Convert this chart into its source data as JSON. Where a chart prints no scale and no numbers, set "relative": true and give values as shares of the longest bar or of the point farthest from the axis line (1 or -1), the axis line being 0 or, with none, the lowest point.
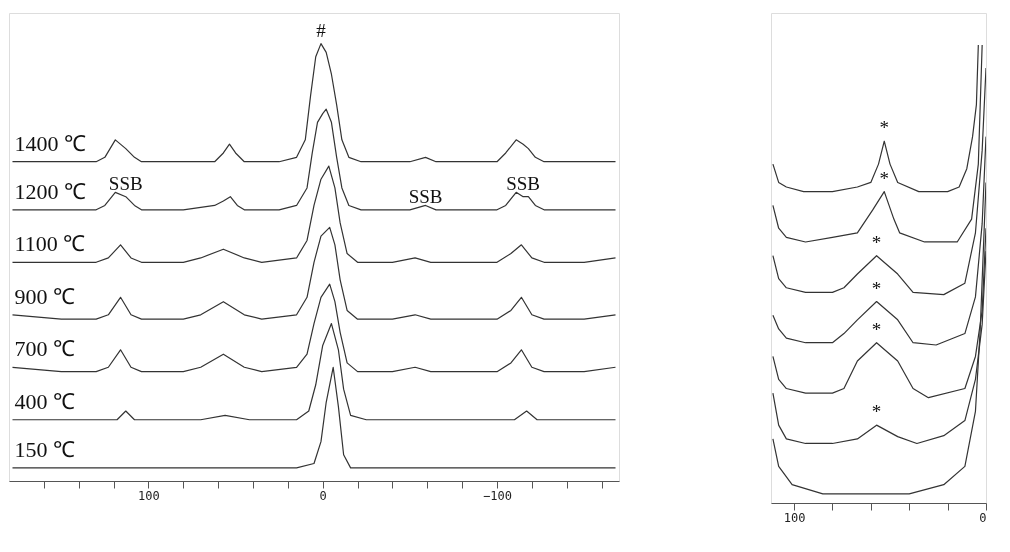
{
  "chart_data": [
    {
      "type": "line",
      "relative": true,
      "tick_labels": "x",
      "grid": false,
      "xlim": [
        180,
        -170
      ],
      "xticks": [
        {
          "value": 160,
          "label": null
        },
        {
          "value": 140,
          "label": null
        },
        {
          "value": 120,
          "label": null
        },
        100,
        {
          "value": 80,
          "label": null
        },
        {
          "value": 60,
          "label": null
        },
        {
          "value": 40,
          "label": null
        },
        {
          "value": 20,
          "label": null
        },
        0,
        {
          "value": -20,
          "label": null
        },
        {
          "value": -40,
          "label": null
        },
        {
          "value": -60,
          "label": null
        },
        {
          "value": -80,
          "label": null
        },
        -100,
        {
          "value": -120,
          "label": null
        },
        {
          "value": -140,
          "label": null
        },
        {
          "value": -160,
          "label": null
        }
      ],
      "series": [
        {
          "name": "1400 ℃",
          "color": "#333333",
          "x": [
            178,
            150,
            130,
            125,
            119,
            113,
            108,
            104,
            80,
            62,
            57,
            53.5,
            50,
            45,
            25,
            15,
            10,
            7,
            4,
            1,
            -2,
            -5,
            -8,
            -11,
            -15,
            -22,
            -50,
            -59,
            -65,
            -100,
            -105,
            -111,
            -115,
            -118,
            -122,
            -127,
            -150,
            -168
          ],
          "values": [
            0.73,
            0.73,
            0.73,
            0.74,
            0.78,
            0.76,
            0.74,
            0.73,
            0.73,
            0.73,
            0.75,
            0.77,
            0.75,
            0.73,
            0.73,
            0.74,
            0.78,
            0.88,
            0.97,
            1.0,
            0.98,
            0.93,
            0.86,
            0.78,
            0.74,
            0.73,
            0.73,
            0.74,
            0.73,
            0.73,
            0.75,
            0.78,
            0.77,
            0.76,
            0.74,
            0.73,
            0.73,
            0.73
          ]
        },
        {
          "name": "1200 ℃",
          "color": "#333333",
          "x": [
            178,
            150,
            130,
            125,
            119,
            113,
            108,
            104,
            80,
            62,
            57,
            53,
            49,
            45,
            25,
            15,
            9,
            6,
            3,
            0,
            -2,
            -5,
            -8,
            -11,
            -15,
            -22,
            -50,
            -59,
            -65,
            -100,
            -105,
            -111,
            -115,
            -118,
            -122,
            -127,
            -150,
            -168
          ],
          "values": [
            0.62,
            0.62,
            0.62,
            0.63,
            0.66,
            0.65,
            0.63,
            0.62,
            0.62,
            0.63,
            0.64,
            0.65,
            0.63,
            0.62,
            0.62,
            0.63,
            0.67,
            0.75,
            0.82,
            0.84,
            0.85,
            0.82,
            0.74,
            0.67,
            0.63,
            0.62,
            0.62,
            0.63,
            0.62,
            0.62,
            0.63,
            0.66,
            0.65,
            0.65,
            0.63,
            0.62,
            0.62,
            0.62
          ]
        },
        {
          "name": "1100 ℃",
          "color": "#333333",
          "x": [
            178,
            150,
            130,
            123,
            116,
            110,
            104,
            80,
            70,
            57,
            45,
            35,
            15,
            9,
            5,
            1,
            -3.5,
            -7,
            -10,
            -14,
            -20,
            -40,
            -53,
            -62,
            -100,
            -108,
            -114,
            -120,
            -127,
            -150,
            -168
          ],
          "values": [
            0.5,
            0.5,
            0.5,
            0.51,
            0.54,
            0.51,
            0.5,
            0.5,
            0.51,
            0.53,
            0.51,
            0.5,
            0.51,
            0.55,
            0.63,
            0.69,
            0.72,
            0.67,
            0.59,
            0.52,
            0.5,
            0.5,
            0.51,
            0.5,
            0.5,
            0.52,
            0.54,
            0.51,
            0.5,
            0.5,
            0.51
          ]
        },
        {
          "name": "900 ℃",
          "color": "#333333",
          "x": [
            178,
            150,
            130,
            123,
            116,
            110,
            104,
            80,
            70,
            57,
            45,
            35,
            15,
            9,
            5,
            1,
            -4,
            -7,
            -10,
            -14,
            -20,
            -40,
            -53,
            -62,
            -100,
            -108,
            -114,
            -120,
            -127,
            -150,
            -168
          ],
          "values": [
            0.38,
            0.37,
            0.37,
            0.38,
            0.42,
            0.38,
            0.37,
            0.37,
            0.38,
            0.41,
            0.38,
            0.37,
            0.38,
            0.42,
            0.5,
            0.56,
            0.58,
            0.54,
            0.46,
            0.39,
            0.37,
            0.37,
            0.38,
            0.37,
            0.37,
            0.39,
            0.42,
            0.38,
            0.37,
            0.37,
            0.38
          ]
        },
        {
          "name": "700 ℃",
          "color": "#333333",
          "x": [
            178,
            150,
            130,
            123,
            116,
            110,
            104,
            80,
            70,
            57,
            45,
            35,
            15,
            9,
            5,
            1,
            -4,
            -7,
            -10,
            -14,
            -20,
            -40,
            -53,
            -62,
            -100,
            -108,
            -114,
            -120,
            -127,
            -150,
            -168
          ],
          "values": [
            0.26,
            0.25,
            0.25,
            0.26,
            0.3,
            0.26,
            0.25,
            0.25,
            0.26,
            0.29,
            0.26,
            0.25,
            0.26,
            0.29,
            0.36,
            0.42,
            0.45,
            0.41,
            0.34,
            0.27,
            0.25,
            0.25,
            0.26,
            0.25,
            0.25,
            0.27,
            0.3,
            0.26,
            0.25,
            0.25,
            0.26
          ]
        },
        {
          "name": "400 ℃",
          "color": "#333333",
          "x": [
            178,
            130,
            118,
            113,
            108,
            70,
            56,
            42,
            15,
            8,
            4,
            0,
            -5,
            -9,
            -12,
            -16,
            -25,
            -110,
            -117,
            -123,
            -168
          ],
          "values": [
            0.14,
            0.14,
            0.14,
            0.16,
            0.14,
            0.14,
            0.15,
            0.14,
            0.14,
            0.16,
            0.22,
            0.31,
            0.36,
            0.3,
            0.21,
            0.15,
            0.14,
            0.14,
            0.16,
            0.14,
            0.14
          ]
        },
        {
          "name": "150 ℃",
          "color": "#333333",
          "x": [
            178,
            120,
            110,
            100,
            15,
            5,
            1,
            -2,
            -6,
            -9,
            -12,
            -16,
            -110,
            -118,
            -125,
            -168
          ],
          "values": [
            0.03,
            0.03,
            0.03,
            0.03,
            0.03,
            0.04,
            0.09,
            0.18,
            0.26,
            0.17,
            0.06,
            0.03,
            0.03,
            0.03,
            0.03,
            0.03
          ]
        }
      ],
      "annotations": [
        {
          "text": "#",
          "x": 1,
          "y": 1.0
        },
        {
          "text": "SSB",
          "x": 113,
          "y": 0.65
        },
        {
          "text": "SSB",
          "x": -59,
          "y": 0.62
        },
        {
          "text": "SSB",
          "x": -115,
          "y": 0.65
        }
      ]
    },
    {
      "type": "line",
      "relative": true,
      "tick_labels": "x",
      "grid": false,
      "xlim": [
        112,
        0
      ],
      "xticks": [
        100,
        {
          "value": 80,
          "label": null
        },
        {
          "value": 60,
          "label": null
        },
        {
          "value": 40,
          "label": null
        },
        {
          "value": 20,
          "label": null
        },
        0
      ],
      "series": [
        {
          "color": "#333333",
          "x": [
            111,
            108,
            104,
            95,
            80,
            67,
            60,
            56,
            53,
            50,
            46,
            35,
            20,
            14,
            10,
            7,
            5,
            4
          ],
          "values": [
            0.74,
            0.7,
            0.69,
            0.68,
            0.68,
            0.69,
            0.7,
            0.74,
            0.79,
            0.74,
            0.7,
            0.68,
            0.68,
            0.69,
            0.73,
            0.8,
            0.87,
            1.0
          ]
        },
        {
          "color": "#333333",
          "x": [
            111,
            108,
            104,
            94,
            80,
            67,
            59,
            53,
            48,
            45,
            32,
            15,
            7.5,
            4,
            2
          ],
          "values": [
            0.65,
            0.6,
            0.58,
            0.57,
            0.58,
            0.59,
            0.64,
            0.68,
            0.62,
            0.59,
            0.57,
            0.57,
            0.62,
            0.74,
            1.0
          ]
        },
        {
          "color": "#333333",
          "x": [
            111,
            108,
            104,
            94,
            80,
            74,
            67,
            57,
            46,
            38,
            22,
            11,
            5.5,
            2,
            0
          ],
          "values": [
            0.54,
            0.49,
            0.47,
            0.46,
            0.46,
            0.47,
            0.5,
            0.54,
            0.5,
            0.46,
            0.455,
            0.48,
            0.59,
            0.77,
            0.95
          ]
        },
        {
          "color": "#333333",
          "x": [
            111,
            108,
            104,
            94,
            80,
            74,
            67,
            57,
            46,
            38,
            26,
            11,
            5.5,
            2,
            0
          ],
          "values": [
            0.41,
            0.38,
            0.36,
            0.35,
            0.35,
            0.37,
            0.4,
            0.44,
            0.4,
            0.35,
            0.345,
            0.37,
            0.45,
            0.61,
            0.8
          ]
        },
        {
          "color": "#333333",
          "x": [
            111,
            108,
            104,
            94,
            80,
            74,
            67,
            57,
            46,
            38,
            30,
            11,
            5.5,
            2,
            0
          ],
          "values": [
            0.32,
            0.27,
            0.25,
            0.24,
            0.24,
            0.25,
            0.31,
            0.35,
            0.31,
            0.25,
            0.23,
            0.25,
            0.32,
            0.42,
            0.6
          ]
        },
        {
          "color": "#333333",
          "x": [
            111,
            108,
            104,
            94,
            80,
            67,
            57,
            46,
            36,
            22,
            11,
            5.5,
            2,
            0
          ],
          "values": [
            0.24,
            0.17,
            0.14,
            0.13,
            0.13,
            0.14,
            0.17,
            0.145,
            0.13,
            0.147,
            0.18,
            0.27,
            0.39,
            0.55
          ]
        },
        {
          "color": "#333333",
          "x": [
            111,
            108,
            101,
            85,
            60,
            40,
            22,
            11,
            5.5,
            3,
            0
          ],
          "values": [
            0.14,
            0.08,
            0.04,
            0.02,
            0.02,
            0.02,
            0.04,
            0.08,
            0.2,
            0.38,
            0.7
          ]
        }
      ],
      "annotations": [
        {
          "text": "*",
          "x": 53,
          "y": 0.79
        },
        {
          "text": "*",
          "x": 53,
          "y": 0.68
        },
        {
          "text": "*",
          "x": 57,
          "y": 0.54
        },
        {
          "text": "*",
          "x": 57,
          "y": 0.44
        },
        {
          "text": "*",
          "x": 57,
          "y": 0.35
        },
        {
          "text": "*",
          "x": 57,
          "y": 0.17
        }
      ]
    }
  ]
}
